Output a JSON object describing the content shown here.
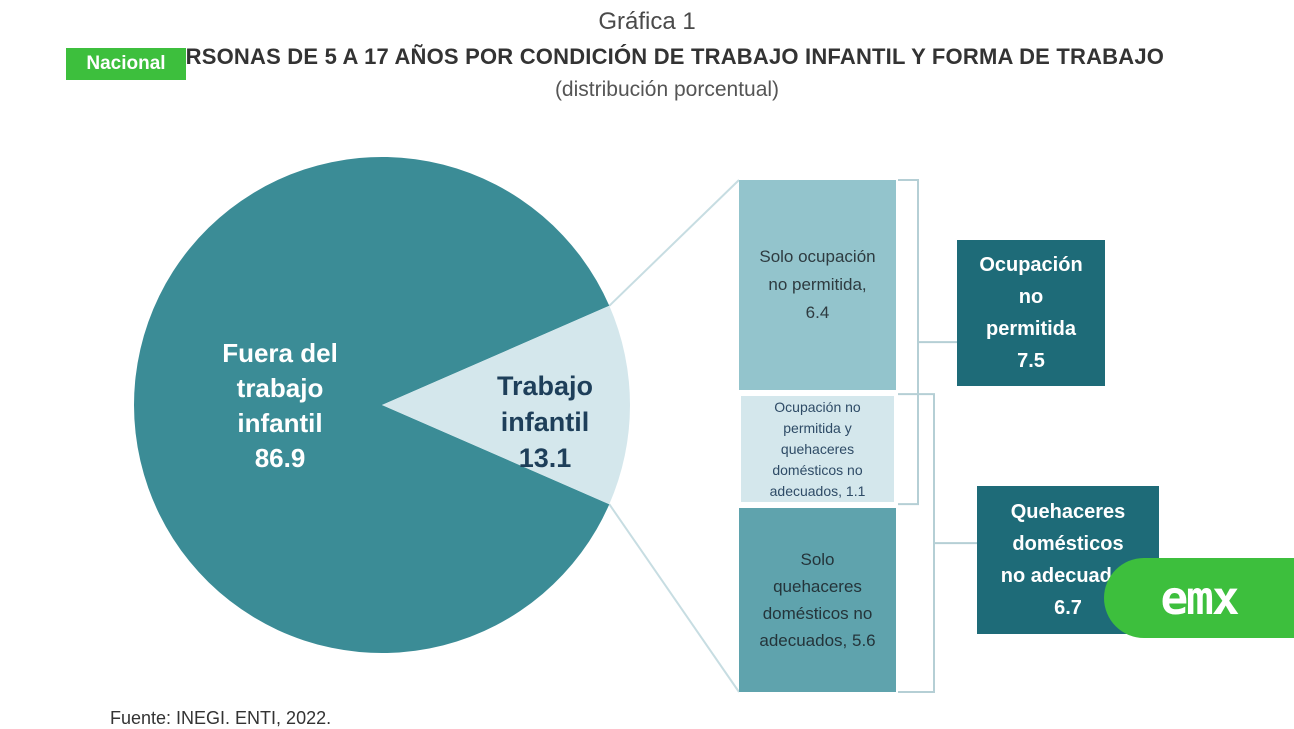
{
  "header": {
    "graf_label": "Gráfica 1",
    "title": "PERSONAS DE 5 A 17 AÑOS POR CONDICIÓN DE TRABAJO INFANTIL Y FORMA DE TRABAJO",
    "subtitle": "(distribución porcentual)"
  },
  "badge": {
    "label": "Nacional",
    "color": "#3dbf3d"
  },
  "logo": {
    "text": "emx"
  },
  "footer": {
    "source": "Fuente: INEGI. ENTI, 2022."
  },
  "colors": {
    "main_slice": "#3b8c96",
    "light_slice": "#d4e7ec",
    "bar_top": "#93c4cc",
    "bar_mid": "#d4e7ec",
    "bar_bottom": "#5fa3ad",
    "summary_box": "#1e6b78"
  },
  "chart_data": {
    "type": "pie",
    "slices": [
      {
        "name": "Fuera del trabajo infantil",
        "lines": [
          "Fuera del",
          "trabajo",
          "infantil",
          "86.9"
        ],
        "value": 86.9
      },
      {
        "name": "Trabajo infantil",
        "lines": [
          "Trabajo",
          "infantil",
          "13.1"
        ],
        "value": 13.1
      }
    ],
    "breakdown": [
      {
        "lines": [
          "Solo ocupación",
          "no permitida,",
          "6.4"
        ],
        "value": 6.4
      },
      {
        "lines": [
          "Ocupación no",
          "permitida y",
          "quehaceres",
          "domésticos no",
          "adecuados, 1.1"
        ],
        "value": 1.1
      },
      {
        "lines": [
          "Solo",
          "quehaceres",
          "domésticos no",
          "adecuados, 5.6"
        ],
        "value": 5.6
      }
    ],
    "groups": [
      {
        "lines": [
          "Ocupación",
          "no",
          "permitida",
          "7.5"
        ],
        "value": 7.5
      },
      {
        "lines": [
          "Quehaceres",
          "domésticos",
          "no adecuados",
          "6.7"
        ],
        "value": 6.7
      }
    ]
  }
}
